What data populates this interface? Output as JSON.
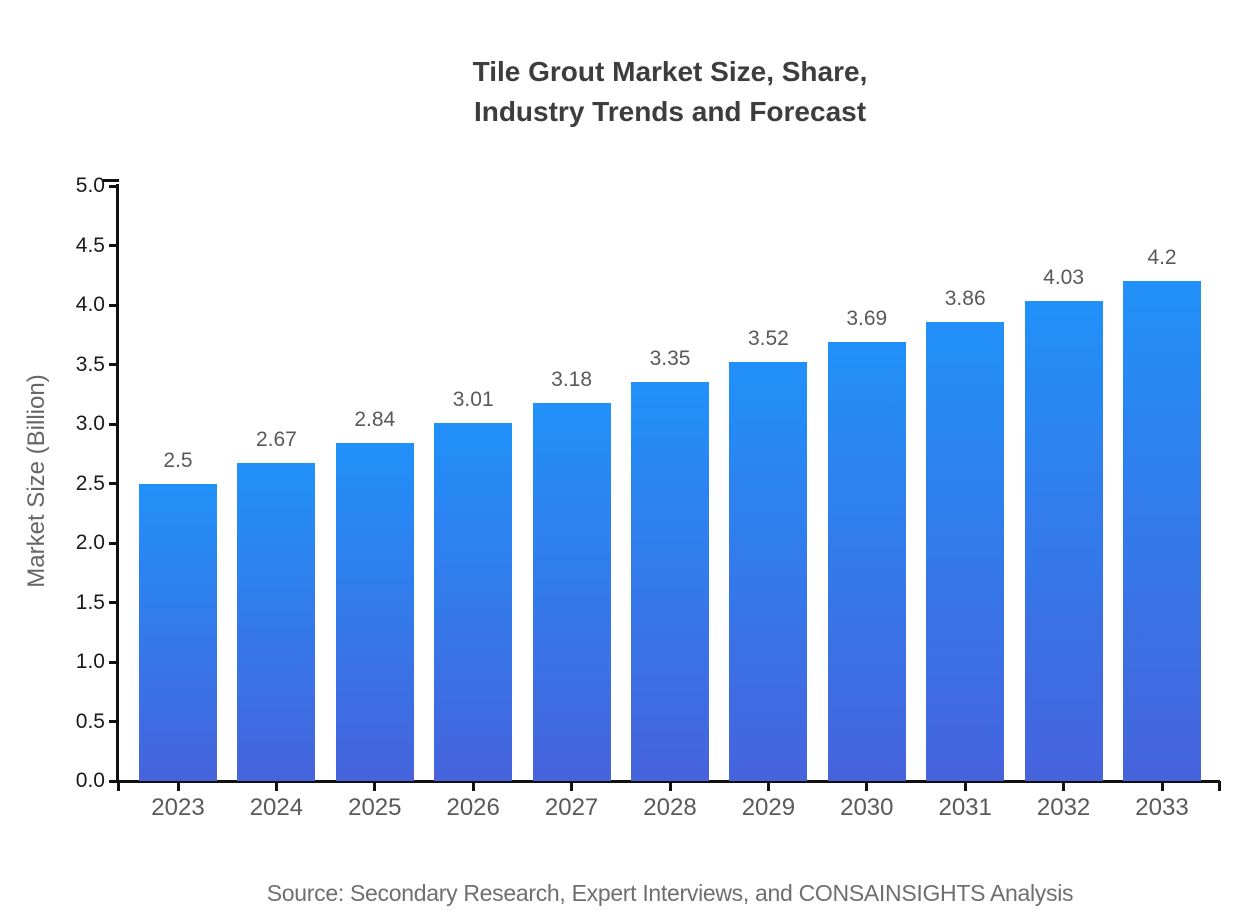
{
  "title": {
    "line1": "Tile Grout Market Size, Share,",
    "line2": "Industry Trends and Forecast"
  },
  "source": "Source: Secondary Research, Expert Interviews, and CONSAINSIGHTS Analysis",
  "chart_data": {
    "type": "bar",
    "title": "Tile Grout Market Size, Share, Industry Trends and Forecast",
    "categories": [
      "2023",
      "2024",
      "2025",
      "2026",
      "2027",
      "2028",
      "2029",
      "2030",
      "2031",
      "2032",
      "2033"
    ],
    "values": [
      2.5,
      2.67,
      2.84,
      3.01,
      3.18,
      3.35,
      3.52,
      3.69,
      3.86,
      4.03,
      4.2
    ],
    "bar_labels": [
      "2.5",
      "2.67",
      "2.84",
      "3.01",
      "3.18",
      "3.35",
      "3.52",
      "3.69",
      "3.86",
      "4.03",
      "4.2"
    ],
    "xlabel": "",
    "ylabel": "Market Size (Billion)",
    "ylim": [
      0.0,
      5.0
    ],
    "ytick_step": 0.5,
    "ytick_labels": [
      "0.0",
      "0.5",
      "1.0",
      "1.5",
      "2.0",
      "2.5",
      "3.0",
      "3.5",
      "4.0",
      "4.5",
      "5.0"
    ],
    "grid": false,
    "legend": "none",
    "colors": {
      "bar_top": "#2191f9",
      "bar_bottom": "#4663dc",
      "axis": "#111111",
      "title": "#3d3d3d",
      "value_label": "#595959",
      "xtick_label": "#5a5a5a",
      "ytick_label": "#1a1a1a",
      "axis_label": "#666666",
      "source": "#6f6f6f"
    }
  }
}
